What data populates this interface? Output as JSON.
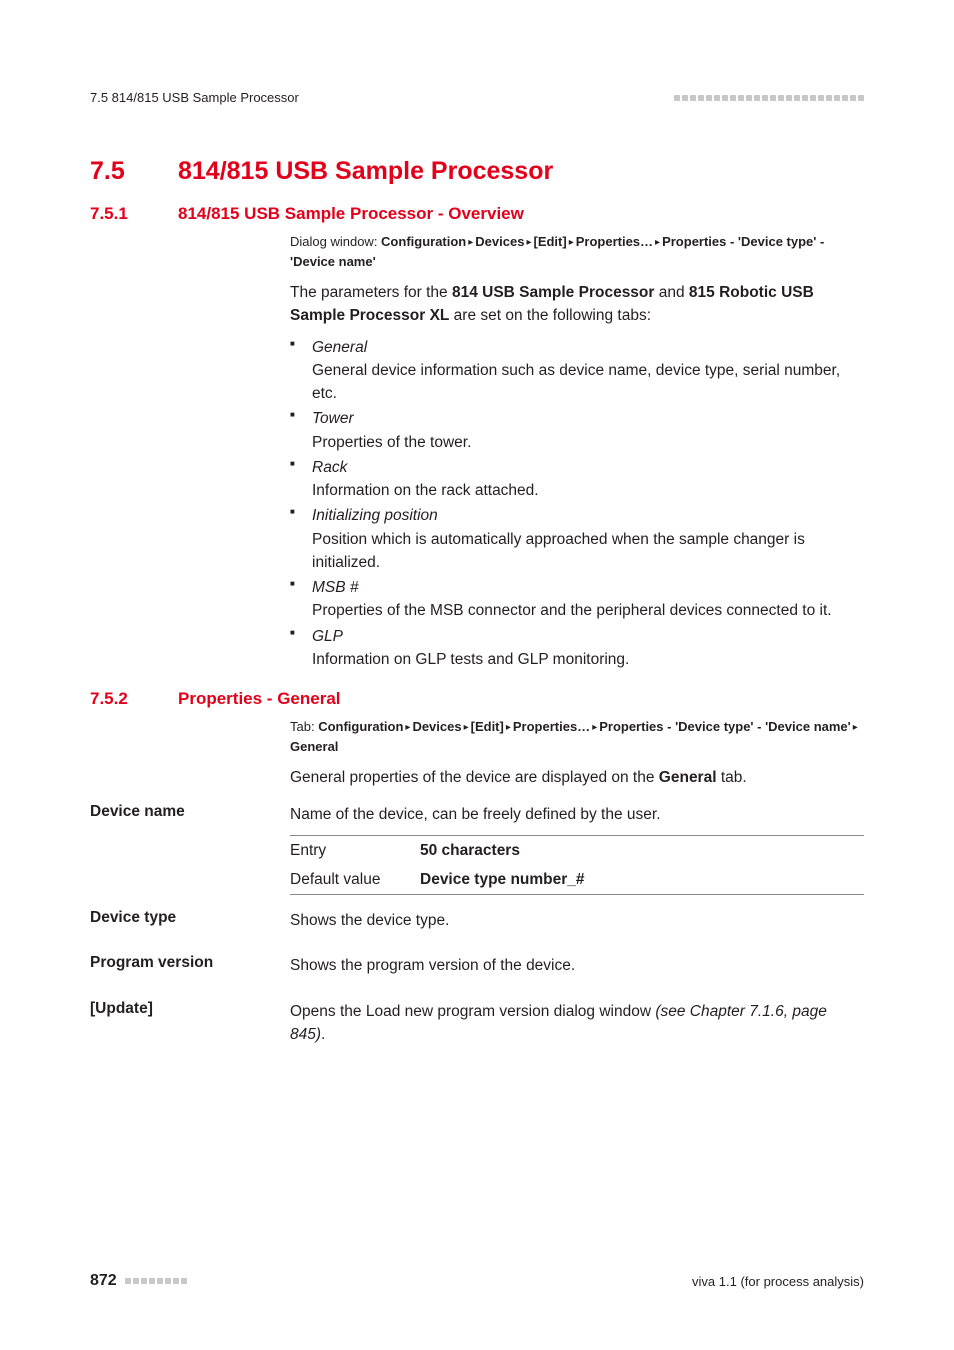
{
  "header": {
    "left": "7.5 814/815 USB Sample Processor",
    "dot_count": 24
  },
  "section": {
    "num": "7.5",
    "title": "814/815 USB Sample Processor"
  },
  "sub1": {
    "num": "7.5.1",
    "title": "814/815 USB Sample Processor - Overview",
    "dialog_prefix": "Dialog window: ",
    "crumbs": [
      "Configuration",
      "Devices",
      "[Edit]",
      "Properties…",
      "Properties - 'Device type' - 'Device name'"
    ],
    "intro_pre": "The parameters for the ",
    "intro_b1": "814 USB Sample Processor",
    "intro_mid": " and ",
    "intro_b2": "815 Robotic USB Sample Processor XL",
    "intro_post": " are set on the following tabs:",
    "bullets": [
      {
        "head": "General",
        "body": "General device information such as device name, device type, serial number, etc."
      },
      {
        "head": "Tower",
        "body": "Properties of the tower."
      },
      {
        "head": "Rack",
        "body": "Information on the rack attached."
      },
      {
        "head": "Initializing position",
        "body": "Position which is automatically approached when the sample changer is initialized."
      },
      {
        "head": "MSB #",
        "body": "Properties of the MSB connector and the peripheral devices connected to it."
      },
      {
        "head": "GLP",
        "body": "Information on GLP tests and GLP monitoring."
      }
    ]
  },
  "sub2": {
    "num": "7.5.2",
    "title": "Properties - General",
    "tab_prefix": "Tab: ",
    "crumbs": [
      "Configuration",
      "Devices",
      "[Edit]",
      "Properties…",
      "Properties - 'Device type' - 'Device name'",
      "General"
    ],
    "intro_pre": "General properties of the device are displayed on the ",
    "intro_b": "General",
    "intro_post": " tab."
  },
  "fields": {
    "device_name": {
      "label": "Device name",
      "desc": "Name of the device, can be freely defined by the user.",
      "rows": [
        {
          "k": "Entry",
          "v": "50 characters"
        },
        {
          "k": "Default value",
          "v": "Device type number_#"
        }
      ]
    },
    "device_type": {
      "label": "Device type",
      "desc": "Shows the device type."
    },
    "program_version": {
      "label": "Program version",
      "desc": "Shows the program version of the device."
    },
    "update": {
      "label": "[Update]",
      "pre": "Opens the ",
      "b": "Load new program version",
      "mid": " dialog window ",
      "ref": "(see Chapter 7.1.6, page 845)",
      "post": "."
    }
  },
  "footer": {
    "page": "872",
    "dot_count": 8,
    "right": "viva 1.1 (for process analysis)"
  }
}
